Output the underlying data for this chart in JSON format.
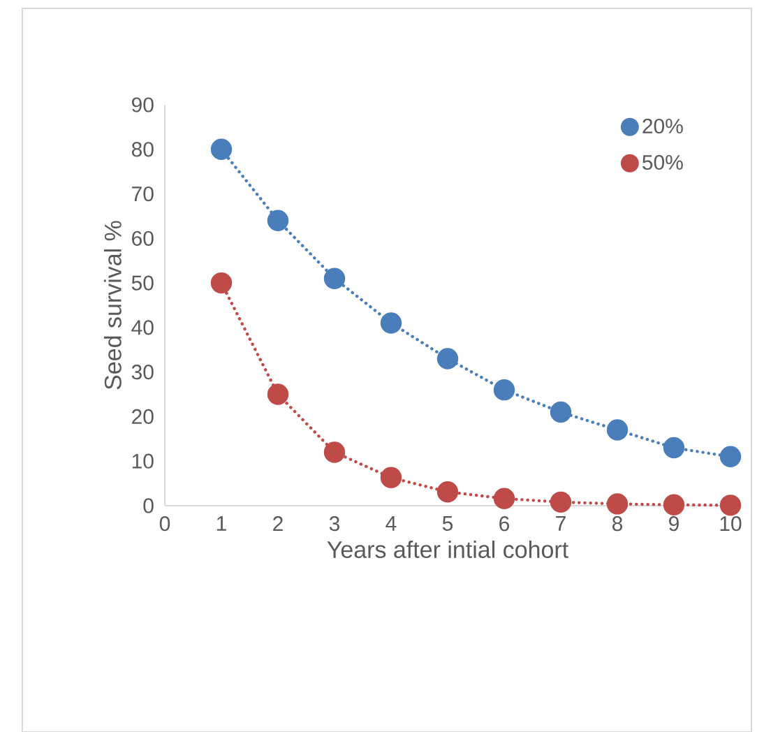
{
  "chart_data": {
    "type": "line",
    "xlabel": "Years after intial cohort",
    "ylabel": "Seed survival %",
    "x": [
      1,
      2,
      3,
      4,
      5,
      6,
      7,
      8,
      9,
      10
    ],
    "series": [
      {
        "name": "20%",
        "color": "#4a7ebb",
        "values": [
          80,
          64,
          51,
          41,
          33,
          26,
          21,
          17,
          13,
          11
        ]
      },
      {
        "name": "50%",
        "color": "#be4b48",
        "values": [
          50,
          25,
          12,
          6.3,
          3.1,
          1.6,
          0.8,
          0.4,
          0.2,
          0.1
        ]
      }
    ],
    "xlim": [
      0,
      10
    ],
    "xticks": [
      0,
      1,
      2,
      3,
      4,
      5,
      6,
      7,
      8,
      9,
      10
    ],
    "ylim": [
      0,
      90
    ],
    "yticks": [
      0,
      10,
      20,
      30,
      40,
      50,
      60,
      70,
      80,
      90
    ],
    "legend": "top right",
    "marker": "circle",
    "line_style": "dotted"
  }
}
